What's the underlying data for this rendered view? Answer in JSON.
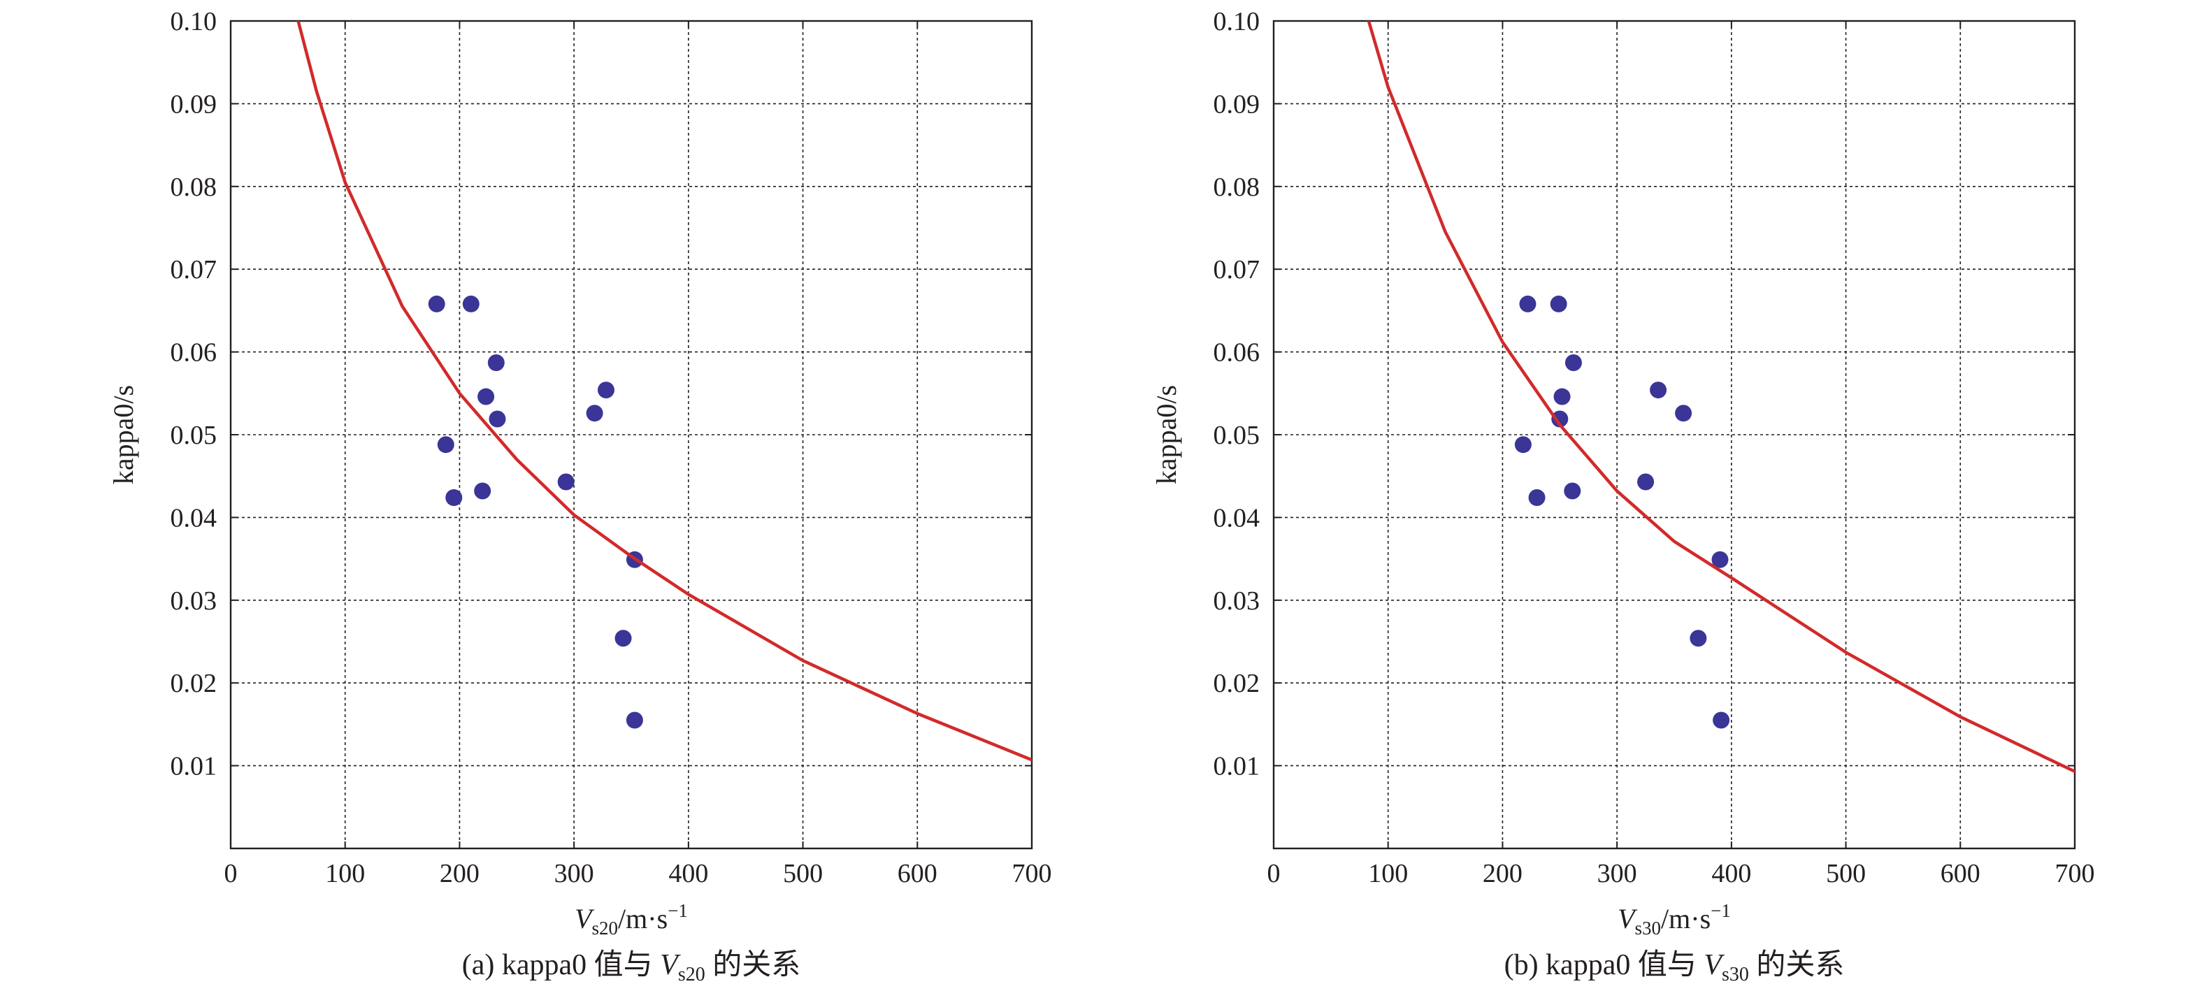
{
  "colors": {
    "curve": "#d22a2a",
    "points": "#3a3596",
    "axis": "#231f20",
    "grid": "#231f20"
  },
  "chart_data": [
    {
      "type": "scatter",
      "panel": "a",
      "caption": {
        "prefix": "(a) kappa0 值与 ",
        "var": "V",
        "sub": "s20",
        "suffix": " 的关系"
      },
      "xlabel": {
        "var": "V",
        "sub": "s20",
        "unit": "/m·s",
        "sup": "−1"
      },
      "ylabel": "kappa0/s",
      "xlim": [
        0,
        700
      ],
      "ylim": [
        0,
        0.1
      ],
      "xticks": [
        "0",
        "100",
        "200",
        "300",
        "400",
        "500",
        "600",
        "700"
      ],
      "yticks": [
        "0.01",
        "0.02",
        "0.03",
        "0.04",
        "0.05",
        "0.06",
        "0.07",
        "0.08",
        "0.09",
        "0.10"
      ],
      "grid": true,
      "series": [
        {
          "kind": "points",
          "x": [
            180,
            210,
            232,
            223,
            233,
            188,
            195,
            220,
            328,
            318,
            293,
            353,
            343,
            353
          ],
          "y": [
            0.0658,
            0.0658,
            0.0587,
            0.0546,
            0.0519,
            0.0488,
            0.0424,
            0.0432,
            0.0554,
            0.0526,
            0.0443,
            0.0349,
            0.0254,
            0.0155
          ]
        },
        {
          "kind": "curve",
          "x": [
            59,
            75,
            100,
            150,
            200,
            250,
            300,
            350,
            400,
            500,
            600,
            700
          ],
          "y": [
            0.1,
            0.0915,
            0.0805,
            0.0655,
            0.055,
            0.047,
            0.0403,
            0.0353,
            0.0307,
            0.0227,
            0.0163,
            0.0107
          ]
        }
      ]
    },
    {
      "type": "scatter",
      "panel": "b",
      "caption": {
        "prefix": "(b) kappa0 值与 ",
        "var": "V",
        "sub": "s30",
        "suffix": " 的关系"
      },
      "xlabel": {
        "var": "V",
        "sub": "s30",
        "unit": "/m·s",
        "sup": "−1"
      },
      "ylabel": "kappa0/s",
      "xlim": [
        0,
        700
      ],
      "ylim": [
        0,
        0.1
      ],
      "xticks": [
        "0",
        "100",
        "200",
        "300",
        "400",
        "500",
        "600",
        "700"
      ],
      "yticks": [
        "0.01",
        "0.02",
        "0.03",
        "0.04",
        "0.05",
        "0.06",
        "0.07",
        "0.08",
        "0.09",
        "0.10"
      ],
      "grid": true,
      "series": [
        {
          "kind": "points",
          "x": [
            222,
            249,
            262,
            252,
            250,
            218,
            230,
            261,
            336,
            358,
            325,
            390,
            371,
            391
          ],
          "y": [
            0.0658,
            0.0658,
            0.0587,
            0.0546,
            0.0519,
            0.0488,
            0.0424,
            0.0432,
            0.0554,
            0.0526,
            0.0443,
            0.0349,
            0.0254,
            0.0155
          ]
        },
        {
          "kind": "curve",
          "x": [
            83,
            100,
            150,
            200,
            250,
            300,
            350,
            400,
            500,
            600,
            700
          ],
          "y": [
            0.1,
            0.092,
            0.0745,
            0.0612,
            0.0512,
            0.0432,
            0.0371,
            0.0327,
            0.0237,
            0.0159,
            0.0093
          ]
        }
      ]
    }
  ]
}
